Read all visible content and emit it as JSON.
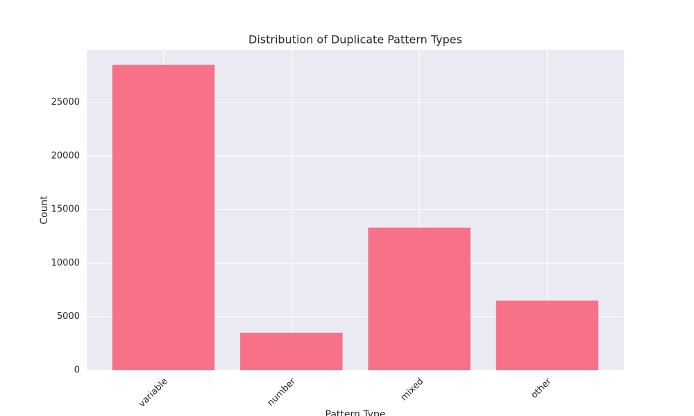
{
  "chart_data": {
    "type": "bar",
    "title": "Distribution of Duplicate Pattern Types",
    "x_label": "Pattern Type",
    "y_label": "Count",
    "categories": [
      "variable",
      "number",
      "mixed",
      "other"
    ],
    "values": [
      28500,
      3500,
      13300,
      6500
    ],
    "color": "#f77189",
    "ylim": [
      0,
      29900
    ],
    "yticks": [
      0,
      5000,
      10000,
      15000,
      20000,
      25000
    ],
    "grid": true
  }
}
